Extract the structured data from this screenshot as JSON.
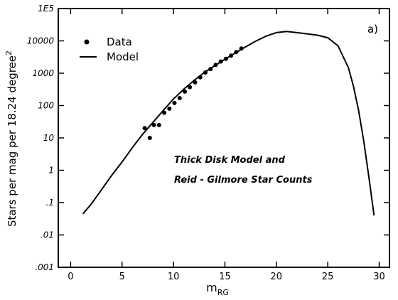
{
  "chart_data": {
    "type": "scatter",
    "title": "",
    "panel_label": "a)",
    "xlabel": "m",
    "xlabel_sub": "RG",
    "ylabel": "Stars per mag per 18.24 degree",
    "ylabel_sup": "2",
    "xlim": [
      -1.2,
      31
    ],
    "ylim_log10": [
      -3,
      5
    ],
    "y_scale": "log",
    "grid": false,
    "legend_position": "top-left",
    "x_ticks": [
      {
        "value": 0,
        "label": "0"
      },
      {
        "value": 5,
        "label": "5"
      },
      {
        "value": 10,
        "label": "10"
      },
      {
        "value": 15,
        "label": "15"
      },
      {
        "value": 20,
        "label": "20"
      },
      {
        "value": 25,
        "label": "25"
      },
      {
        "value": 30,
        "label": "30"
      }
    ],
    "y_ticks": [
      {
        "value": 0.001,
        "label": ".001"
      },
      {
        "value": 0.01,
        "label": ".01"
      },
      {
        "value": 0.1,
        "label": ".1"
      },
      {
        "value": 1,
        "label": "1"
      },
      {
        "value": 10,
        "label": "10"
      },
      {
        "value": 100,
        "label": "100"
      },
      {
        "value": 1000,
        "label": "1000"
      },
      {
        "value": 10000,
        "label": "10000"
      },
      {
        "value": 100000,
        "label": "1E5"
      }
    ],
    "annotation_lines": [
      "Thick Disk Model and",
      "Reid - Gilmore Star Counts"
    ],
    "series": [
      {
        "name": "Data",
        "kind": "points",
        "x": [
          7.2,
          7.7,
          8.1,
          8.6,
          9.1,
          9.6,
          10.1,
          10.6,
          11.1,
          11.6,
          12.1,
          12.6,
          13.1,
          13.6,
          14.1,
          14.6,
          15.1,
          15.6,
          16.1,
          16.6
        ],
        "y": [
          20,
          10,
          25,
          25,
          60,
          80,
          120,
          170,
          270,
          370,
          520,
          750,
          1050,
          1350,
          1800,
          2300,
          2800,
          3500,
          4500,
          5800
        ]
      },
      {
        "name": "Model",
        "kind": "line",
        "x": [
          1.2,
          2,
          3,
          4,
          5,
          6,
          7,
          8,
          9,
          10,
          11,
          12,
          13,
          14,
          15,
          16,
          17,
          18,
          19,
          20,
          21,
          22,
          23,
          24,
          25,
          26,
          27,
          27.5,
          28,
          28.5,
          29,
          29.5
        ],
        "y": [
          0.045,
          0.09,
          0.25,
          0.7,
          1.8,
          5,
          13,
          30,
          70,
          160,
          320,
          600,
          1050,
          1700,
          2700,
          4200,
          6500,
          9800,
          14000,
          18000,
          19500,
          18000,
          16500,
          15000,
          12500,
          7000,
          1500,
          400,
          70,
          8,
          0.6,
          0.04
        ]
      }
    ]
  }
}
